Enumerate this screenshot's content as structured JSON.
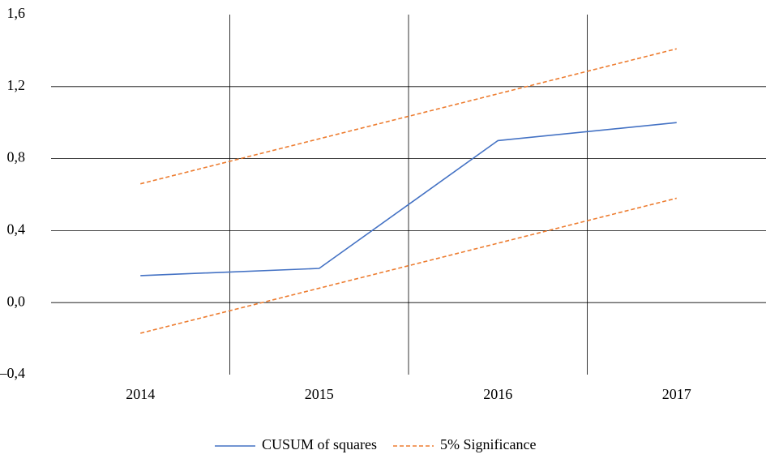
{
  "chart_data": {
    "type": "line",
    "categories": [
      "2014",
      "2015",
      "2016",
      "2017"
    ],
    "series": [
      {
        "name": "CUSUM of squares",
        "color": "#4472c4",
        "dashed": false,
        "values": [
          0.15,
          0.19,
          0.9,
          1.0
        ]
      },
      {
        "name": "5% Significance",
        "color": "#ed7d31",
        "dashed": true,
        "values": [
          0.66,
          0.91,
          1.16,
          1.41
        ]
      },
      {
        "color": "#ed7d31",
        "dashed": true,
        "values": [
          -0.17,
          0.08,
          0.33,
          0.58
        ]
      }
    ],
    "ylim": [
      -0.4,
      1.6
    ],
    "yticks": [
      {
        "value": -0.4,
        "label": "–0,4"
      },
      {
        "value": 0,
        "label": "0,0"
      },
      {
        "value": 0.4,
        "label": "0,4"
      },
      {
        "value": 0.8,
        "label": "0,8"
      },
      {
        "value": 1.2,
        "label": "1,2"
      },
      {
        "value": 1.6,
        "label": "1,6"
      }
    ],
    "grid": true,
    "legend": "bottom"
  }
}
